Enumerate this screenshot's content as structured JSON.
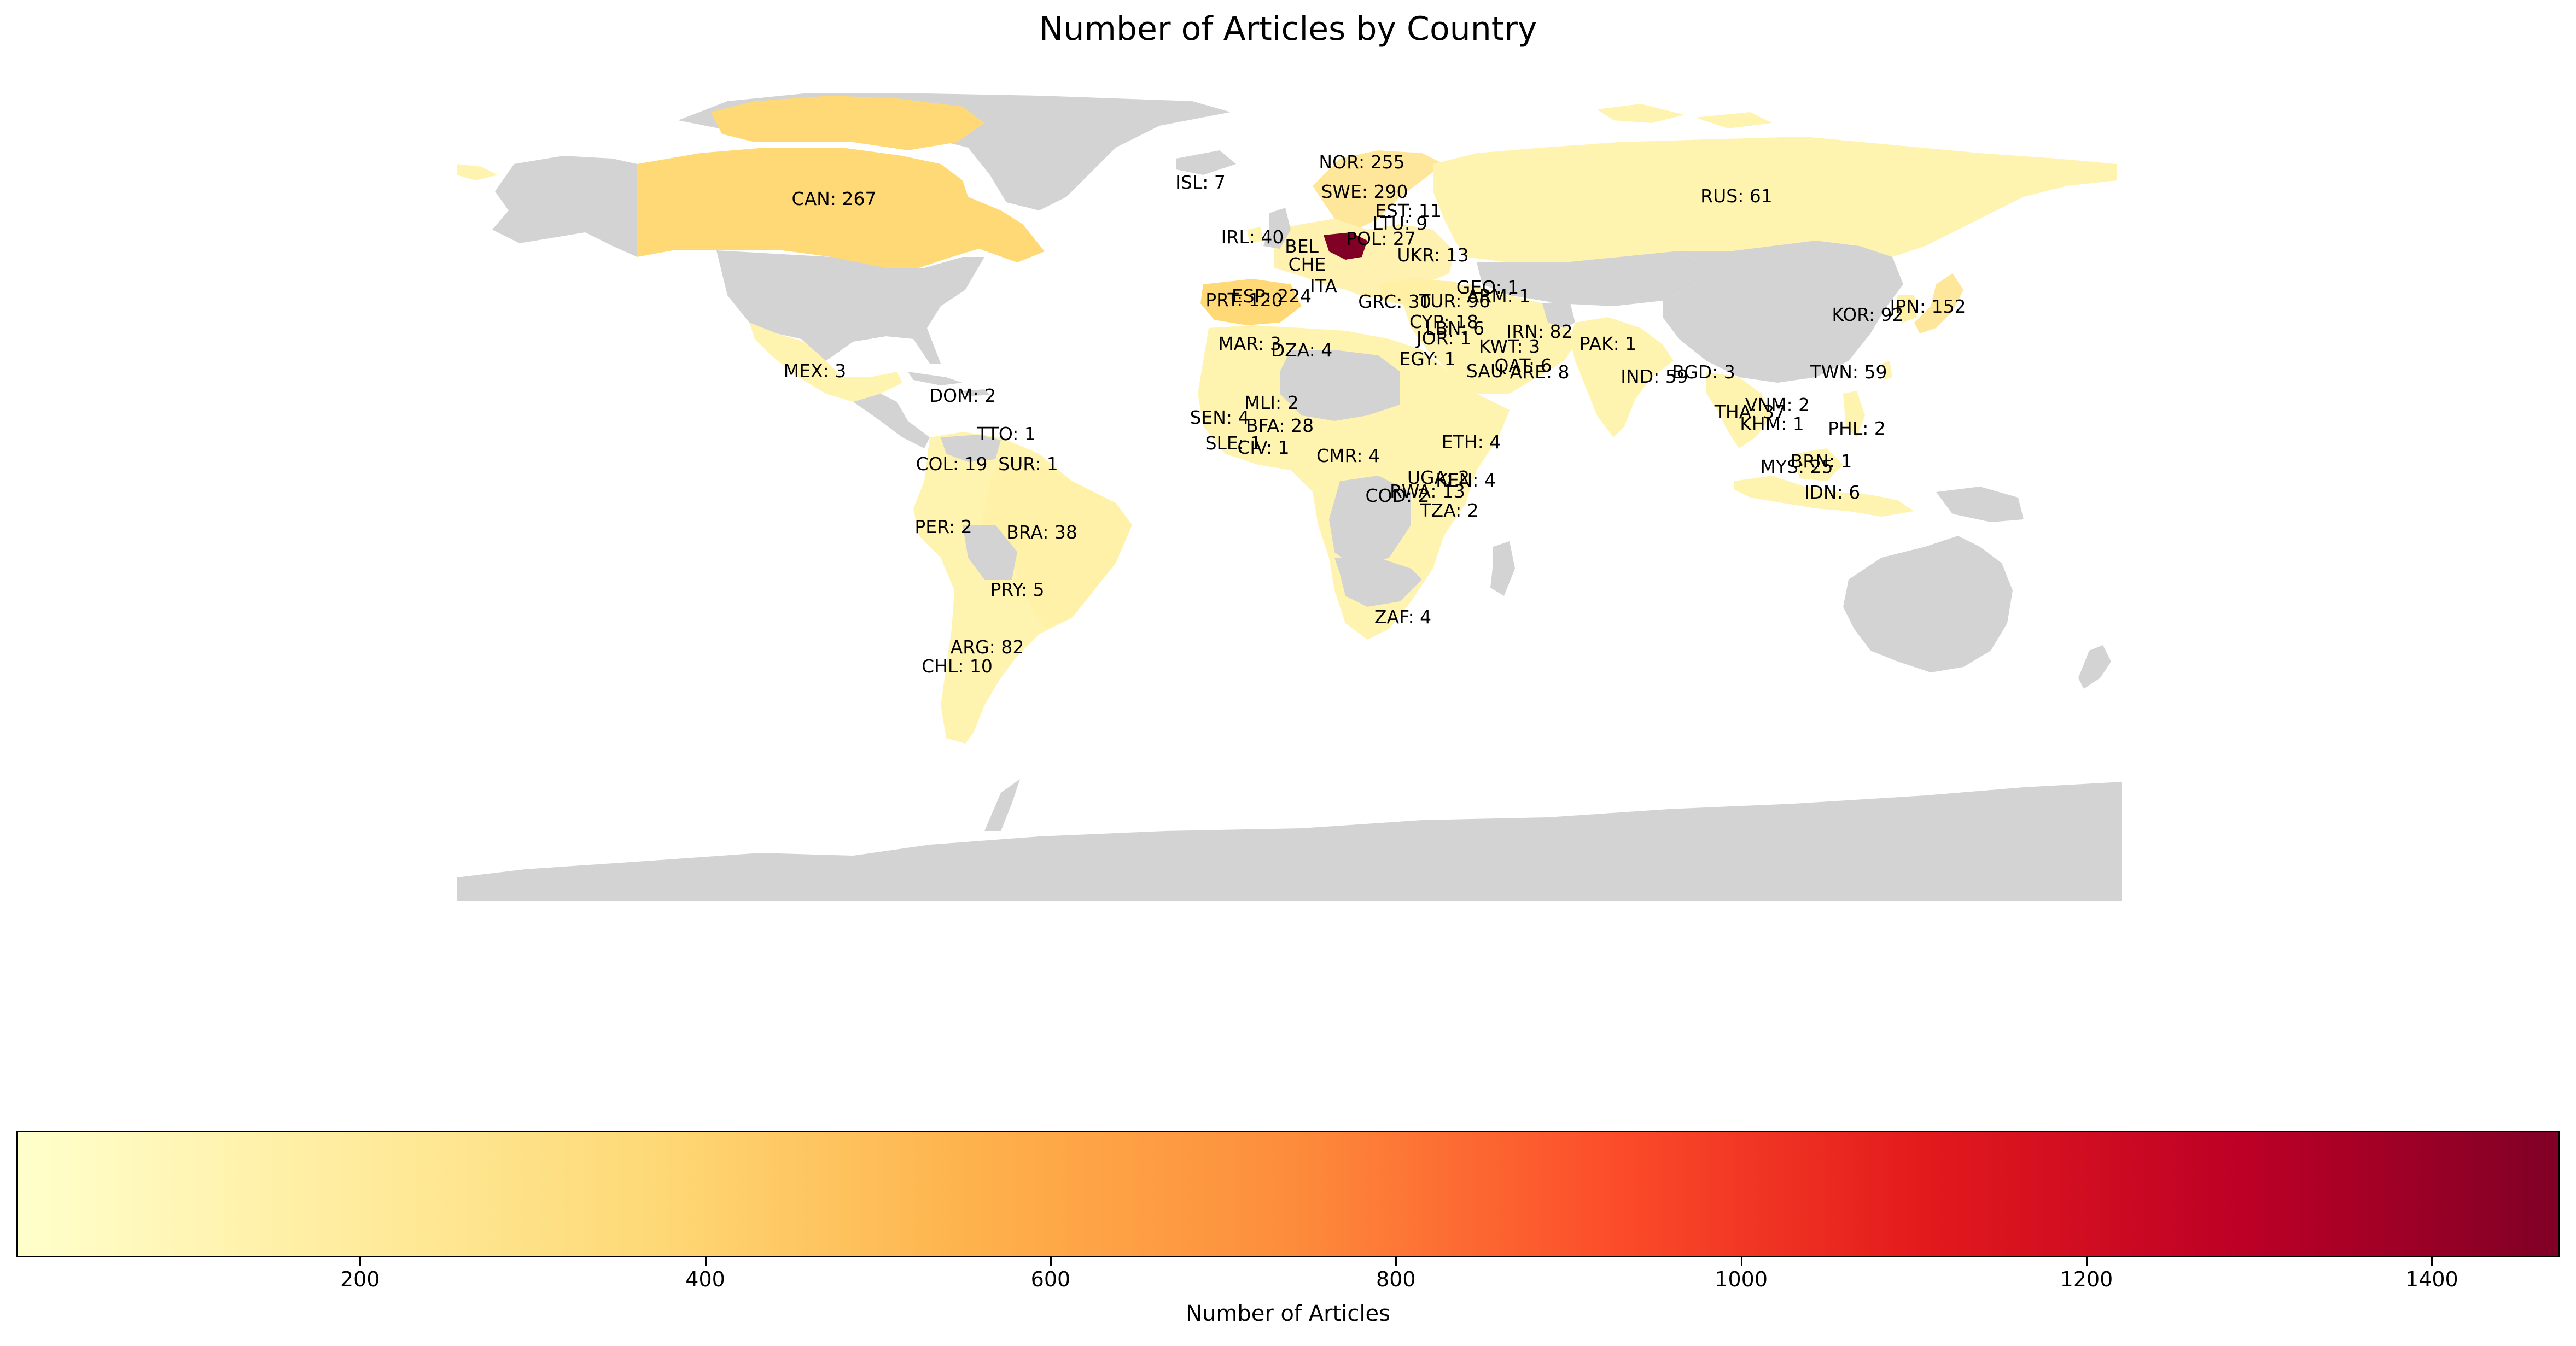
{
  "title": "Number of Articles by Country",
  "colors": {
    "no_data": "#d3d3d3",
    "colormap": [
      "#ffffcc",
      "#ffeda0",
      "#fed976",
      "#feb24c",
      "#fd8d3c",
      "#fc4e2a",
      "#e31a1c",
      "#bd0026",
      "#800026"
    ],
    "dense_europe": "#800026"
  },
  "colorbar": {
    "label": "Number of Articles",
    "ticks": [
      "200",
      "400",
      "600",
      "800",
      "1000",
      "1200",
      "1400"
    ],
    "range": [
      1,
      1474
    ]
  },
  "map_data": {
    "type": "choropleth",
    "countries": [
      {
        "code": "CAN",
        "label": "CAN: 267",
        "value": 267
      },
      {
        "code": "ISL",
        "label": "ISL: 7",
        "value": 7
      },
      {
        "code": "NOR",
        "label": "NOR: 255",
        "value": 255
      },
      {
        "code": "SWE",
        "label": "SWE: 290",
        "value": 290
      },
      {
        "code": "EST",
        "label": "EST: 11",
        "value": 11
      },
      {
        "code": "LTU",
        "label": "LTU: 9",
        "value": 9
      },
      {
        "code": "RUS",
        "label": "RUS: 61",
        "value": 61
      },
      {
        "code": "IRL",
        "label": "IRL: 40",
        "value": 40
      },
      {
        "code": "POL",
        "label": "POL: 27",
        "value": 27
      },
      {
        "code": "UKR",
        "label": "UKR: 13",
        "value": 13
      },
      {
        "code": "BEL",
        "label": "BEL",
        "value": null
      },
      {
        "code": "CHE",
        "label": "CHE",
        "value": null
      },
      {
        "code": "ITA",
        "label": "ITA",
        "value": null
      },
      {
        "code": "PRT",
        "label": "PRT: 120",
        "value": 120
      },
      {
        "code": "ESP",
        "label": "ESP: 224",
        "value": 224
      },
      {
        "code": "GRC",
        "label": "GRC: 30",
        "value": 30
      },
      {
        "code": "TUR",
        "label": "TUR: 96",
        "value": 96
      },
      {
        "code": "GEO",
        "label": "GEO: 1",
        "value": 1
      },
      {
        "code": "ARM",
        "label": "ARM: 1",
        "value": 1
      },
      {
        "code": "CYP",
        "label": "CYP: 18",
        "value": 18
      },
      {
        "code": "LBN",
        "label": "LBN: 6",
        "value": 6
      },
      {
        "code": "JOR",
        "label": "JOR: 1",
        "value": 1
      },
      {
        "code": "IRN",
        "label": "IRN: 82",
        "value": 82
      },
      {
        "code": "KWT",
        "label": "KWT: 3",
        "value": 3
      },
      {
        "code": "QAT",
        "label": "QAT: 6",
        "value": 6
      },
      {
        "code": "SAU",
        "label": "SAU",
        "value": null
      },
      {
        "code": "ARE",
        "label": "ARE: 8",
        "value": 8
      },
      {
        "code": "PAK",
        "label": "PAK: 1",
        "value": 1
      },
      {
        "code": "IND",
        "label": "IND: 59",
        "value": 59
      },
      {
        "code": "BGD",
        "label": "BGD: 3",
        "value": 3
      },
      {
        "code": "KOR",
        "label": "KOR: 92",
        "value": 92
      },
      {
        "code": "JPN",
        "label": "JPN: 152",
        "value": 152
      },
      {
        "code": "TWN",
        "label": "TWN: 59",
        "value": 59
      },
      {
        "code": "VNM",
        "label": "VNM: 2",
        "value": 2
      },
      {
        "code": "THA",
        "label": "THA: 37",
        "value": 37
      },
      {
        "code": "KHM",
        "label": "KHM: 1",
        "value": 1
      },
      {
        "code": "PHL",
        "label": "PHL: 2",
        "value": 2
      },
      {
        "code": "BRN",
        "label": "BRN: 1",
        "value": 1
      },
      {
        "code": "MYS",
        "label": "MYS: 25",
        "value": 25
      },
      {
        "code": "IDN",
        "label": "IDN: 6",
        "value": 6
      },
      {
        "code": "MAR",
        "label": "MAR: 3",
        "value": 3
      },
      {
        "code": "DZA",
        "label": "DZA: 4",
        "value": 4
      },
      {
        "code": "EGY",
        "label": "EGY: 1",
        "value": 1
      },
      {
        "code": "MLI",
        "label": "MLI: 2",
        "value": 2
      },
      {
        "code": "SEN",
        "label": "SEN: 4",
        "value": 4
      },
      {
        "code": "BFA",
        "label": "BFA: 28",
        "value": 28
      },
      {
        "code": "SLE",
        "label": "SLE: 1",
        "value": 1
      },
      {
        "code": "CIV",
        "label": "CIV: 1",
        "value": 1
      },
      {
        "code": "CMR",
        "label": "CMR: 4",
        "value": 4
      },
      {
        "code": "ETH",
        "label": "ETH: 4",
        "value": 4
      },
      {
        "code": "UGA",
        "label": "UGA: 2",
        "value": 2
      },
      {
        "code": "KEN",
        "label": "KEN: 4",
        "value": 4
      },
      {
        "code": "RWA",
        "label": "RWA: 13",
        "value": 13
      },
      {
        "code": "COD",
        "label": "COD: 2",
        "value": 2
      },
      {
        "code": "TZA",
        "label": "TZA: 2",
        "value": 2
      },
      {
        "code": "ZAF",
        "label": "ZAF: 4",
        "value": 4
      },
      {
        "code": "MEX",
        "label": "MEX: 3",
        "value": 3
      },
      {
        "code": "DOM",
        "label": "DOM: 2",
        "value": 2
      },
      {
        "code": "TTO",
        "label": "TTO: 1",
        "value": 1
      },
      {
        "code": "COL",
        "label": "COL: 19",
        "value": 19
      },
      {
        "code": "SUR",
        "label": "SUR: 1",
        "value": 1
      },
      {
        "code": "PER",
        "label": "PER: 2",
        "value": 2
      },
      {
        "code": "BRA",
        "label": "BRA: 38",
        "value": 38
      },
      {
        "code": "PRY",
        "label": "PRY: 5",
        "value": 5
      },
      {
        "code": "ARG",
        "label": "ARG: 82",
        "value": 82
      },
      {
        "code": "CHL",
        "label": "CHL: 10",
        "value": 10
      }
    ],
    "no_data_regions": [
      "USA",
      "GRL",
      "CHN",
      "MNG",
      "KAZ",
      "AUS",
      "ANT",
      "LBY",
      "SDN",
      "TCD",
      "NER",
      "AGO",
      "NAM",
      "BOL",
      "VEN",
      "AFG",
      "MDG"
    ]
  }
}
